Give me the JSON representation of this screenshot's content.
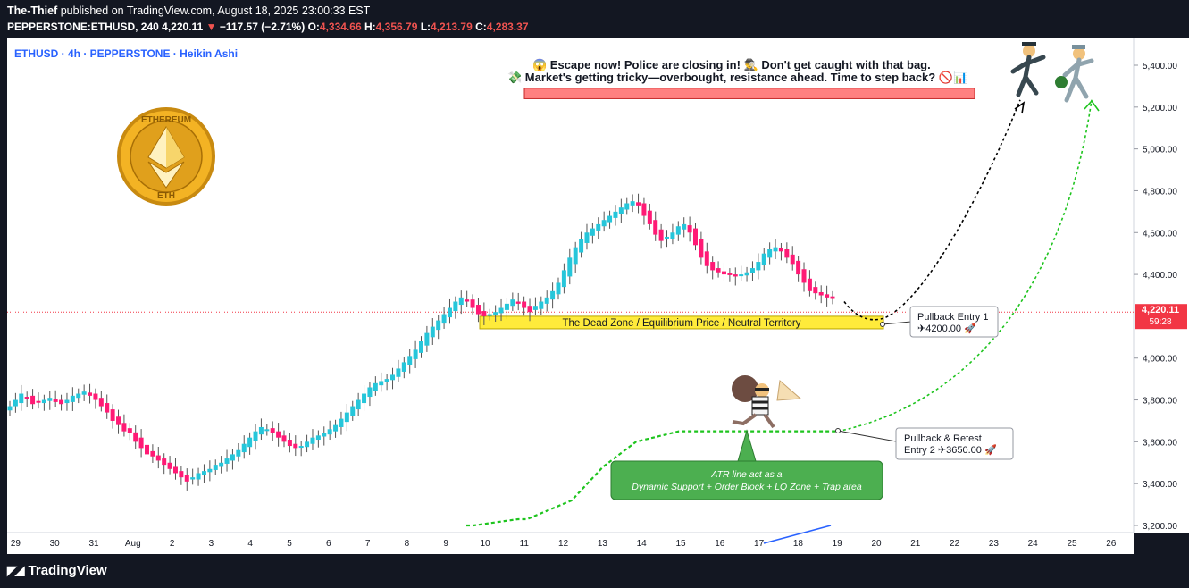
{
  "header": {
    "publisher": "The-Thief",
    "published_text": "published on TradingView.com, August 18, 2025 23:00:33 EST",
    "symbol": "PEPPERSTONE:ETHUSD, 240",
    "last": "4,220.11",
    "arrow": "▼",
    "change": "−117.57 (−2.71%)",
    "o_label": "O:",
    "o": "4,334.66",
    "h_label": "H:",
    "h": "4,356.79",
    "l_label": "L:",
    "l": "4,213.79",
    "c_label": "C:",
    "c": "4,283.37"
  },
  "legend": {
    "title": "ETHUSD · 4h · PEPPERSTONE · Heikin Ashi"
  },
  "logo": {
    "top_text": "ETHEREUM",
    "bottom_text": "ETH"
  },
  "annotations": {
    "headline": "😱 Escape now! Police are closing in! 🕵️‍♂️ Don't get caught with that bag.",
    "subline": "💸 Market's getting tricky—overbought, resistance ahead. Time to step back? 🚫📊",
    "zone_label": "The Dead Zone / Equilibrium Price / Neutral Territory",
    "entry1_line1": "Pullback Entry 1",
    "entry1_line2": "✈4200.00 🚀",
    "entry2_line1": "Pullback & Retest",
    "entry2_line2": "Entry 2 ✈3650.00 🚀",
    "atr_line1": "ATR line act as a",
    "atr_line2": "Dynamic Support + Order Block + LQ Zone + Trap area"
  },
  "price_axis": {
    "ticks": [
      {
        "value": 5400,
        "label": "5,400.00"
      },
      {
        "value": 5200,
        "label": "5,200.00"
      },
      {
        "value": 5000,
        "label": "5,000.00"
      },
      {
        "value": 4800,
        "label": "4,800.00"
      },
      {
        "value": 4600,
        "label": "4,600.00"
      },
      {
        "value": 4400,
        "label": "4,400.00"
      },
      {
        "value": 4000,
        "label": "4,000.00"
      },
      {
        "value": 3800,
        "label": "3,800.00"
      },
      {
        "value": 3600,
        "label": "3,600.00"
      },
      {
        "value": 3400,
        "label": "3,400.00"
      },
      {
        "value": 3200,
        "label": "3,200.00"
      }
    ],
    "current_price": "4,220.11",
    "countdown": "59:28"
  },
  "footer": {
    "brand": "TradingView"
  },
  "colors": {
    "up": "#26c6da",
    "down": "#ff1a75",
    "zone": "#ffeb3b",
    "resist": "#ff7f7f",
    "atr": "#1ec41e",
    "price_tag": "#f23645"
  },
  "chart_data": {
    "type": "candlestick",
    "style": "Heikin Ashi",
    "symbol": "ETHUSD",
    "interval": "4h",
    "exchange": "PEPPERSTONE",
    "ylim": [
      3150,
      5500
    ],
    "x_ticks": [
      {
        "day": -2,
        "label": "29"
      },
      {
        "day": -1,
        "label": "30"
      },
      {
        "day": 0,
        "label": "31"
      },
      {
        "day": 1,
        "label": "Aug"
      },
      {
        "day": 2,
        "label": "2"
      },
      {
        "day": 3,
        "label": "3"
      },
      {
        "day": 4,
        "label": "4"
      },
      {
        "day": 5,
        "label": "5"
      },
      {
        "day": 6,
        "label": "6"
      },
      {
        "day": 7,
        "label": "7"
      },
      {
        "day": 8,
        "label": "8"
      },
      {
        "day": 9,
        "label": "9"
      },
      {
        "day": 10,
        "label": "10"
      },
      {
        "day": 11,
        "label": "11"
      },
      {
        "day": 12,
        "label": "12"
      },
      {
        "day": 13,
        "label": "13"
      },
      {
        "day": 14,
        "label": "14"
      },
      {
        "day": 15,
        "label": "15"
      },
      {
        "day": 16,
        "label": "16"
      },
      {
        "day": 17,
        "label": "17"
      },
      {
        "day": 18,
        "label": "18"
      },
      {
        "day": 19,
        "label": "19"
      },
      {
        "day": 20,
        "label": "20"
      },
      {
        "day": 21,
        "label": "21"
      },
      {
        "day": 22,
        "label": "22"
      },
      {
        "day": 23,
        "label": "23"
      },
      {
        "day": 24,
        "label": "24"
      },
      {
        "day": 25,
        "label": "25"
      },
      {
        "day": 26,
        "label": "26"
      }
    ],
    "candles_close": [
      3770,
      3800,
      3830,
      3810,
      3780,
      3790,
      3800,
      3810,
      3790,
      3780,
      3800,
      3820,
      3830,
      3840,
      3820,
      3800,
      3770,
      3740,
      3700,
      3680,
      3650,
      3640,
      3600,
      3570,
      3540,
      3530,
      3510,
      3490,
      3470,
      3450,
      3430,
      3410,
      3430,
      3450,
      3460,
      3470,
      3490,
      3500,
      3520,
      3540,
      3560,
      3590,
      3620,
      3650,
      3670,
      3660,
      3640,
      3620,
      3600,
      3580,
      3570,
      3580,
      3600,
      3620,
      3630,
      3640,
      3660,
      3680,
      3710,
      3740,
      3770,
      3800,
      3830,
      3860,
      3880,
      3890,
      3900,
      3920,
      3950,
      3980,
      4010,
      4040,
      4080,
      4120,
      4150,
      4180,
      4210,
      4240,
      4270,
      4290,
      4270,
      4240,
      4210,
      4200,
      4210,
      4220,
      4240,
      4260,
      4280,
      4260,
      4240,
      4220,
      4250,
      4270,
      4290,
      4320,
      4360,
      4420,
      4480,
      4530,
      4570,
      4600,
      4620,
      4640,
      4660,
      4680,
      4700,
      4720,
      4740,
      4750,
      4730,
      4680,
      4640,
      4590,
      4560,
      4580,
      4600,
      4630,
      4640,
      4600,
      4540,
      4480,
      4440,
      4420,
      4410,
      4400,
      4400,
      4390,
      4400,
      4410,
      4430,
      4460,
      4500,
      4520,
      4530,
      4510,
      4480,
      4450,
      4400,
      4360,
      4320,
      4310,
      4300,
      4290,
      4283
    ],
    "projections": [
      {
        "name": "Pullback Entry 1",
        "price": 4200,
        "target": 5230
      },
      {
        "name": "Pullback & Retest Entry 2",
        "price": 3650,
        "target": 5230
      }
    ],
    "zones": [
      {
        "name": "The Dead Zone / Equilibrium Price / Neutral Territory",
        "from": 4140,
        "to": 4200
      },
      {
        "name": "resistance",
        "from": 5240,
        "to": 5290
      }
    ],
    "atr_line": [
      3200,
      3200,
      3230,
      3230,
      3320,
      3480,
      3600,
      3650,
      3650,
      3650
    ]
  }
}
